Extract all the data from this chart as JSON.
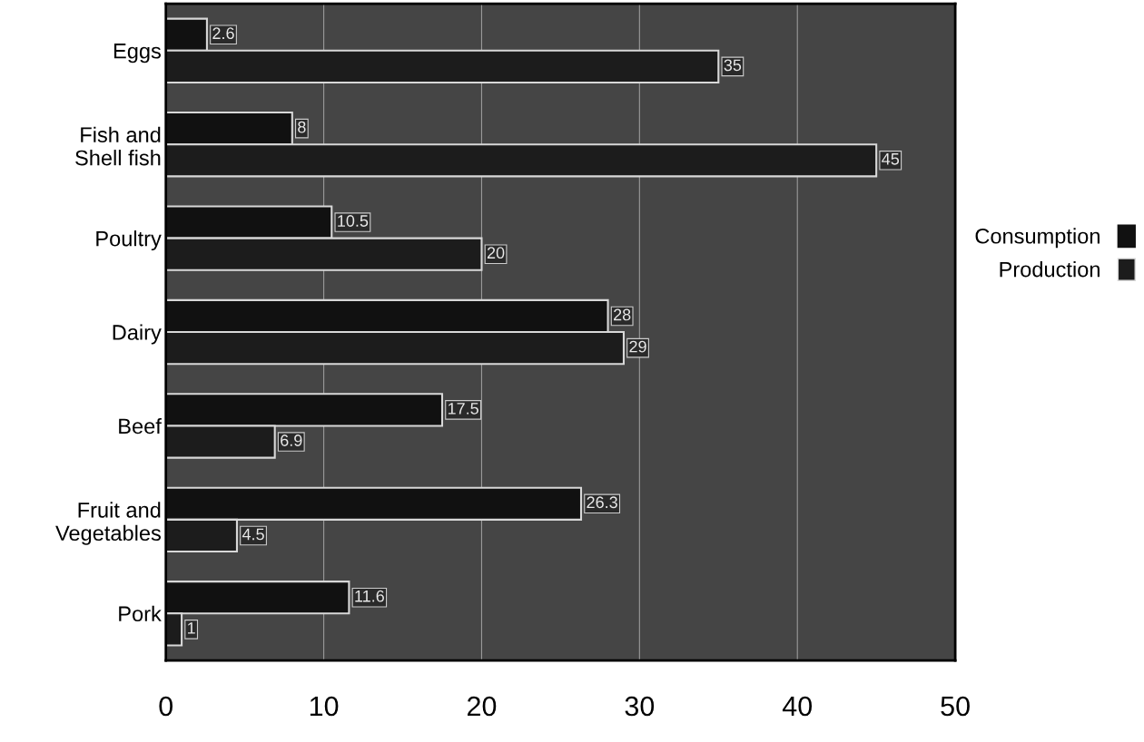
{
  "chart_data": {
    "type": "bar",
    "orientation": "horizontal",
    "categories": [
      "Eggs",
      "Fish and\nShell fish",
      "Poultry",
      "Dairy",
      "Beef",
      "Fruit and\nVegetables",
      "Pork"
    ],
    "series": [
      {
        "name": "Consumption",
        "color": "#111111",
        "values": [
          2.6,
          8,
          10.5,
          28,
          17.5,
          26.3,
          11.6
        ]
      },
      {
        "name": "Production",
        "color": "#1c1c1c",
        "values": [
          35,
          45,
          20,
          29,
          6.9,
          4.5,
          1
        ]
      }
    ],
    "xlim": [
      0,
      50
    ],
    "xticks": [
      0,
      10,
      20,
      30,
      40,
      50
    ],
    "grid": "x",
    "legend": "right",
    "data_labels": true
  }
}
